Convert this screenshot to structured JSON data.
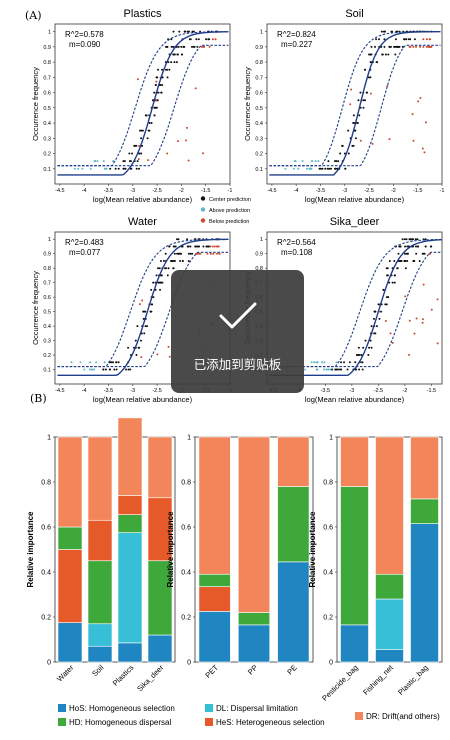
{
  "panel_a_label": "(A)",
  "panel_b_label": "(B)",
  "scatter_axis": {
    "ylabel": "Occurrence frequency",
    "xlabel": "log(Mean relative abundance)"
  },
  "legend_scatter": [
    {
      "label": "Center prediction",
      "color": "#111111"
    },
    {
      "label": "Above prediction",
      "color": "#5bb8c8"
    },
    {
      "label": "Below prediction",
      "color": "#d0482a"
    }
  ],
  "colors": {
    "line": "#1f3d8a",
    "hos": "#1f86c1",
    "hd": "#3ea83a",
    "dl": "#38bfd8",
    "hes": "#e55a28",
    "dr": "#f2855a"
  },
  "toast": {
    "text": "已添加到剪贴板",
    "icon": "check-icon"
  },
  "bar_axis_ylabel": "Relative importance",
  "bar_legend": [
    {
      "label": "HoS: Homogeneous selection",
      "color": "#1f86c1"
    },
    {
      "label": "DL: Dispersal limitation",
      "color": "#38bfd8"
    },
    {
      "label": "HD: Homogeneous dispersal",
      "color": "#3ea83a"
    },
    {
      "label": "HeS: Heterogeneous selection",
      "color": "#e55a28"
    },
    {
      "label": "DR: Drift(and others)",
      "color": "#f2855a"
    }
  ],
  "chart_data": [
    {
      "type": "scatter",
      "title": "Plastics",
      "r2": "R^2=0.578",
      "m": "m=0.090",
      "xlabel": "log(Mean relative abundance)",
      "ylabel": "Occurrence frequency",
      "xlim": [
        -4.6,
        -1
      ],
      "ylim": [
        0,
        1
      ],
      "xticks": [
        "-4.5",
        "-4",
        "-3.5",
        "-3",
        "-2.5",
        "-2",
        "-1.5",
        "-1"
      ],
      "yticks": [
        "0.1",
        "0.2",
        "0.3",
        "0.4",
        "0.5",
        "0.6",
        "0.7",
        "0.8",
        "0.9",
        "1"
      ],
      "fit": {
        "center": -2.6,
        "slope": 2.3
      }
    },
    {
      "type": "scatter",
      "title": "Soil",
      "r2": "R^2=0.824",
      "m": "m=0.227",
      "xlabel": "log(Mean relative abundance)",
      "ylabel": "Occurrence frequency",
      "xlim": [
        -4.6,
        -1
      ],
      "ylim": [
        0,
        1
      ],
      "xticks": [
        "-4.5",
        "-4",
        "-3.5",
        "-3",
        "-2.5",
        "-2",
        "-1.5",
        "-1"
      ],
      "yticks": [
        "0.1",
        "0.2",
        "0.3",
        "0.4",
        "0.5",
        "0.6",
        "0.7",
        "0.8",
        "0.9",
        "1"
      ],
      "fit": {
        "center": -2.7,
        "slope": 2.6
      }
    },
    {
      "type": "scatter",
      "title": "Water",
      "r2": "R^2=0.483",
      "m": "m=0.077",
      "xlabel": "log(Mean relative abundance)",
      "ylabel": "Occurrence frequency",
      "xlim": [
        -4.6,
        -1
      ],
      "ylim": [
        0,
        1
      ],
      "xticks": [
        "-4.5",
        "-4",
        "-3.5",
        "-3",
        "-2.5",
        "-2",
        "-1.5",
        "-1"
      ],
      "yticks": [
        "0.1",
        "0.2",
        "0.3",
        "0.4",
        "0.5",
        "0.6",
        "0.7",
        "0.8",
        "0.9",
        "1"
      ],
      "fit": {
        "center": -2.7,
        "slope": 2.2
      }
    },
    {
      "type": "scatter",
      "title": "Sika_deer",
      "r2": "R^2=0.564",
      "m": "m=0.108",
      "xlabel": "log(Mean relative abundance)",
      "ylabel": "Occurrence frequency",
      "xlim": [
        -4.6,
        -1.3
      ],
      "ylim": [
        0,
        1
      ],
      "xticks": [
        "-4.5",
        "-4",
        "-3.5",
        "-3",
        "-2.5",
        "-2",
        "-1.5"
      ],
      "yticks": [
        "0.1",
        "0.2",
        "0.3",
        "0.4",
        "0.5",
        "0.6",
        "0.7",
        "0.8",
        "0.9",
        "1"
      ],
      "fit": {
        "center": -2.5,
        "slope": 2.4
      }
    },
    {
      "type": "bar",
      "stacked": true,
      "ylabel": "Relative importance",
      "ylim": [
        0,
        1
      ],
      "yticks": [
        "0",
        "0.2",
        "0.4",
        "0.6",
        "0.8",
        "1"
      ],
      "categories": [
        "Water",
        "Soil",
        "Plastics",
        "Sika_deer"
      ],
      "series": [
        {
          "name": "HoS: Homogeneous selection",
          "values": [
            0.175,
            0.07,
            0.085,
            0.12
          ]
        },
        {
          "name": "DL: Dispersal limitation",
          "values": [
            0,
            0.1,
            0.49,
            0
          ]
        },
        {
          "name": "HD: Homogeneous dispersal",
          "values": [
            0,
            0.28,
            0.08,
            0.33
          ]
        },
        {
          "name": "HeS: Heterogeneous selection",
          "values": [
            0.325,
            0.18,
            0.085,
            0.28
          ]
        },
        {
          "name": "HD: Homogeneous dispersal",
          "values": [
            0.1,
            0,
            0,
            0
          ]
        },
        {
          "name": "DR: Drift(and others)",
          "values": [
            0.4,
            0.37,
            0.345,
            0.27
          ]
        }
      ]
    },
    {
      "type": "bar",
      "stacked": true,
      "ylabel": "Relative importance",
      "ylim": [
        0,
        1
      ],
      "yticks": [
        "0",
        "0.2",
        "0.4",
        "0.6",
        "0.8",
        "1"
      ],
      "categories": [
        "PET",
        "PP",
        "PE"
      ],
      "series": [
        {
          "name": "HoS: Homogeneous selection",
          "values": [
            0.225,
            0.165,
            0.445
          ]
        },
        {
          "name": "HeS: Heterogeneous selection",
          "values": [
            0.11,
            0,
            0
          ]
        },
        {
          "name": "HD: Homogeneous dispersal",
          "values": [
            0.055,
            0.055,
            0.335
          ]
        },
        {
          "name": "DR: Drift(and others)",
          "values": [
            0.61,
            0.78,
            0.22
          ]
        }
      ]
    },
    {
      "type": "bar",
      "stacked": true,
      "ylabel": "Relative importance",
      "ylim": [
        0,
        1
      ],
      "yticks": [
        "0",
        "0.2",
        "0.4",
        "0.6",
        "0.8",
        "1"
      ],
      "categories": [
        "Pesticide_bag",
        "Fishing_net",
        "Plastic_bag"
      ],
      "series": [
        {
          "name": "HoS: Homogeneous selection",
          "values": [
            0.165,
            0.055,
            0.615
          ]
        },
        {
          "name": "DL: Dispersal limitation",
          "values": [
            0,
            0.225,
            0
          ]
        },
        {
          "name": "HD: Homogeneous dispersal",
          "values": [
            0.615,
            0.11,
            0.11
          ]
        },
        {
          "name": "DR: Drift(and others)",
          "values": [
            0.22,
            0.61,
            0.275
          ]
        }
      ]
    }
  ]
}
